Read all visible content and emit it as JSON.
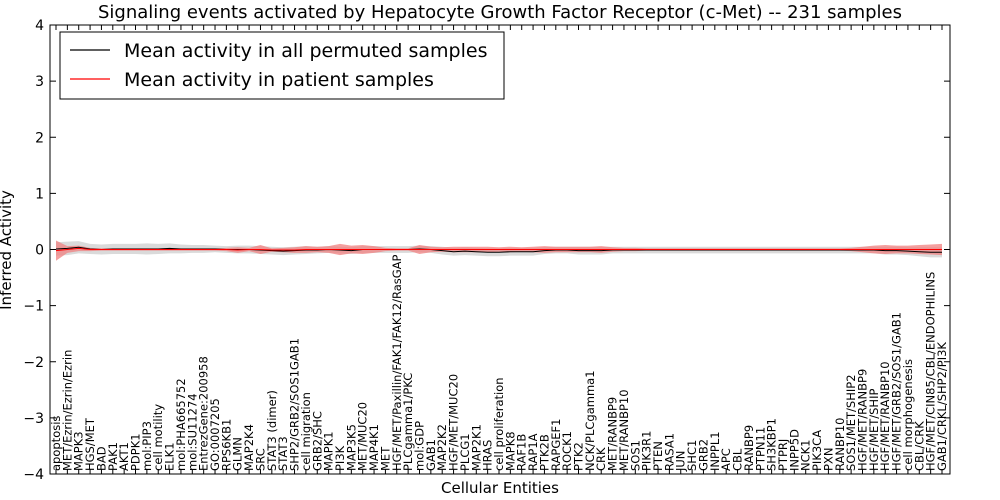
{
  "chart_data": {
    "type": "line",
    "title": "Signaling events activated by Hepatocyte Growth Factor Receptor (c-Met) -- 231 samples",
    "xlabel": "Cellular Entities",
    "ylabel": "Inferred Activity",
    "ylim": [
      -4,
      4
    ],
    "yticks": [
      -4,
      -3,
      -2,
      -1,
      0,
      1,
      2,
      3,
      4
    ],
    "ytick_labels": [
      "−4",
      "−3",
      "−2",
      "−1",
      "0",
      "1",
      "2",
      "3",
      "4"
    ],
    "legend_position": "top-left",
    "categories": [
      "apoptosis",
      "MET/Ezrin/Ezrin/Ezrin",
      "MAPK3",
      "HGS/MET",
      "BAD",
      "PAK1",
      "AKT1",
      "PDPK1",
      "mol:PIP3",
      "cell motility",
      "ELK1",
      "mol:PHA665752",
      "mol:SU11274",
      "EntrezGene:200958",
      "GO:0007205",
      "RPS6KB1",
      "GLMN",
      "MAP2K4",
      "SRC",
      "STAT3 (dimer)",
      "STAT3",
      "SHP2/GRB2/SOS1GAB1",
      "cell migration",
      "GRB2/SHC",
      "MAPK1",
      "PI3K",
      "MAP3K5",
      "MET/MUC20",
      "MAP4K1",
      "MET",
      "HGF/MET/Paxillin/FAK1/FAK12/RasGAP",
      "PLCgamma1/PKC",
      "mol:GDP",
      "GAB1",
      "MAP2K2",
      "HGF/MET/MUC20",
      "PLCG1",
      "MAP2K1",
      "HRAS",
      "cell proliferation",
      "MAPK8",
      "RAF1B",
      "RAP1A",
      "PTK2B",
      "RAPGEF1",
      "ROCK1",
      "PTK2",
      "NCK/PLCgamma1",
      "CRK",
      "MET/RANBP9",
      "MET/RANBP10",
      "SOS1",
      "PIK3R1",
      "PTEN",
      "RASA1",
      "JUN",
      "SHC1",
      "GRB2",
      "INPPL1",
      "APC",
      "CBL",
      "RANBP9",
      "PTPN11",
      "SH3KBP1",
      "PTPRJ",
      "INPP5D",
      "NCK1",
      "PIK3CA",
      "PXN",
      "RANBP10",
      "SOS1/MET/SHIP2",
      "HGF/MET/RANBP9",
      "HGF/MET/SHIP",
      "HGF/MET/RANBP10",
      "HGF/MET/GRB2/SOS1/GAB1",
      "cell morphogenesis",
      "CBL/CRK",
      "HGF/MET/CIN85/CBL/ENDOPHILINS",
      "GAB1/CRKL/SHP2/PI3K"
    ],
    "series": [
      {
        "name": "Mean activity in all permuted samples",
        "color": "#000000",
        "band_color": "#bbbbbb",
        "values": [
          0.01,
          0.02,
          0.04,
          0.01,
          0.0,
          0.01,
          0.01,
          0.01,
          0.01,
          0.01,
          0.02,
          0.01,
          0.01,
          0.01,
          0.01,
          0.0,
          0.0,
          0.0,
          -0.01,
          -0.02,
          -0.03,
          -0.02,
          -0.01,
          -0.01,
          0.0,
          -0.01,
          -0.02,
          0.0,
          0.0,
          0.0,
          0.0,
          0.0,
          0.01,
          0.0,
          -0.02,
          -0.04,
          -0.03,
          -0.04,
          -0.05,
          -0.05,
          -0.04,
          -0.04,
          -0.04,
          -0.02,
          -0.01,
          -0.01,
          -0.02,
          -0.02,
          -0.02,
          -0.01,
          -0.01,
          -0.01,
          -0.01,
          -0.01,
          -0.01,
          -0.01,
          -0.01,
          -0.01,
          -0.01,
          -0.01,
          -0.01,
          -0.01,
          -0.01,
          -0.01,
          -0.01,
          -0.01,
          -0.01,
          -0.01,
          -0.01,
          -0.01,
          -0.01,
          -0.01,
          -0.01,
          -0.02,
          -0.02,
          -0.03,
          -0.04,
          -0.05,
          -0.05
        ],
        "band": [
          0.12,
          0.12,
          0.11,
          0.09,
          0.09,
          0.09,
          0.09,
          0.09,
          0.1,
          0.09,
          0.09,
          0.08,
          0.07,
          0.07,
          0.06,
          0.06,
          0.07,
          0.07,
          0.07,
          0.07,
          0.07,
          0.07,
          0.07,
          0.06,
          0.06,
          0.06,
          0.06,
          0.06,
          0.06,
          0.06,
          0.06,
          0.06,
          0.06,
          0.06,
          0.07,
          0.07,
          0.07,
          0.07,
          0.07,
          0.07,
          0.07,
          0.07,
          0.07,
          0.06,
          0.06,
          0.06,
          0.07,
          0.07,
          0.07,
          0.06,
          0.06,
          0.06,
          0.06,
          0.06,
          0.06,
          0.06,
          0.06,
          0.06,
          0.06,
          0.06,
          0.06,
          0.06,
          0.06,
          0.06,
          0.06,
          0.06,
          0.06,
          0.06,
          0.06,
          0.06,
          0.06,
          0.06,
          0.06,
          0.07,
          0.07,
          0.07,
          0.08,
          0.09,
          0.09
        ]
      },
      {
        "name": "Mean activity in patient samples",
        "color": "#ff0000",
        "band_color": "#f08080",
        "values": [
          -0.02,
          0.0,
          0.02,
          0.0,
          0.0,
          0.0,
          0.0,
          0.0,
          0.0,
          0.0,
          0.0,
          0.0,
          0.0,
          0.0,
          0.0,
          0.0,
          -0.01,
          0.0,
          0.0,
          -0.01,
          -0.01,
          -0.01,
          0.0,
          0.0,
          0.0,
          0.0,
          0.0,
          0.0,
          0.0,
          0.0,
          0.0,
          0.0,
          0.0,
          0.0,
          0.0,
          0.0,
          0.0,
          0.0,
          0.0,
          0.0,
          0.0,
          0.0,
          0.0,
          0.0,
          0.0,
          0.0,
          0.0,
          0.0,
          0.0,
          0.0,
          0.0,
          0.0,
          0.0,
          0.0,
          0.0,
          0.0,
          0.0,
          0.0,
          0.0,
          0.0,
          0.0,
          0.0,
          0.0,
          0.0,
          0.0,
          0.0,
          0.0,
          0.0,
          0.0,
          0.0,
          0.0,
          0.0,
          0.0,
          0.0,
          0.0,
          0.0,
          0.0,
          0.0,
          0.0
        ],
        "band": [
          0.18,
          0.06,
          0.05,
          0.03,
          0.02,
          0.02,
          0.02,
          0.02,
          0.02,
          0.02,
          0.02,
          0.02,
          0.02,
          0.02,
          0.02,
          0.03,
          0.05,
          0.03,
          0.08,
          0.03,
          0.04,
          0.05,
          0.06,
          0.05,
          0.06,
          0.1,
          0.07,
          0.08,
          0.06,
          0.03,
          0.02,
          0.02,
          0.08,
          0.05,
          0.04,
          0.05,
          0.05,
          0.05,
          0.05,
          0.04,
          0.05,
          0.04,
          0.05,
          0.06,
          0.05,
          0.05,
          0.05,
          0.05,
          0.06,
          0.04,
          0.03,
          0.03,
          0.02,
          0.02,
          0.02,
          0.02,
          0.02,
          0.02,
          0.02,
          0.02,
          0.02,
          0.02,
          0.02,
          0.02,
          0.02,
          0.02,
          0.02,
          0.02,
          0.02,
          0.02,
          0.03,
          0.05,
          0.07,
          0.08,
          0.07,
          0.07,
          0.08,
          0.09,
          0.1
        ]
      }
    ]
  }
}
